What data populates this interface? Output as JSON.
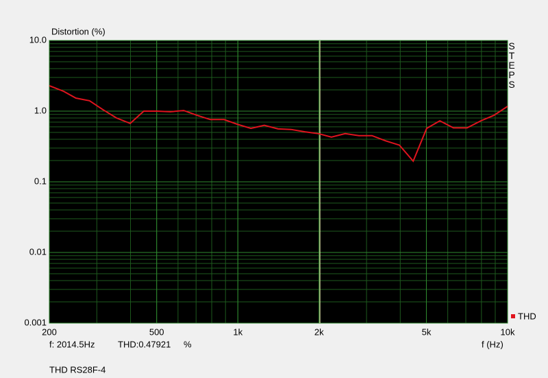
{
  "chart_data": {
    "type": "line",
    "y_label": "Distortion (%)",
    "x_label": "f (Hz)",
    "title": "THD RS28F-4",
    "side_label": "STEPS",
    "x": [
      200,
      226,
      251,
      282,
      316,
      355,
      399,
      448,
      501,
      562,
      630,
      707,
      791,
      889,
      998,
      1117,
      1253,
      1409,
      1574,
      1770,
      1991,
      2223,
      2500,
      2812,
      3141,
      3532,
      3972,
      4467,
      5012,
      5610,
      6295,
      7080,
      7960,
      8891,
      10000
    ],
    "series": [
      {
        "name": "THD",
        "color": "#e0141e",
        "values": [
          2.29,
          1.91,
          1.53,
          1.4,
          1.05,
          0.8,
          0.67,
          1.0,
          1.0,
          0.98,
          1.02,
          0.87,
          0.76,
          0.76,
          0.65,
          0.57,
          0.63,
          0.56,
          0.55,
          0.51,
          0.48,
          0.43,
          0.48,
          0.45,
          0.45,
          0.38,
          0.33,
          0.196,
          0.57,
          0.73,
          0.58,
          0.58,
          0.73,
          0.87,
          1.17
        ]
      }
    ],
    "xlim": [
      200,
      10000
    ],
    "ylim": [
      0.001,
      10
    ],
    "xscale": "log",
    "yscale": "log",
    "grid": true,
    "xticks": [
      200,
      500,
      {
        "value": 1000,
        "label": "1k"
      },
      {
        "value": 2000,
        "label": "2k"
      },
      {
        "value": 5000,
        "label": "5k"
      },
      {
        "value": 10000,
        "label": "10k"
      }
    ],
    "yticks": [
      {
        "value": 10,
        "label": "10.0"
      },
      {
        "value": 1,
        "label": "1.0"
      },
      0.1,
      0.01,
      0.001
    ],
    "cursor": {
      "x": 2014.5,
      "label": "f: 2014.5Hz",
      "readout": "THD:0.47921",
      "unit": "%"
    }
  }
}
